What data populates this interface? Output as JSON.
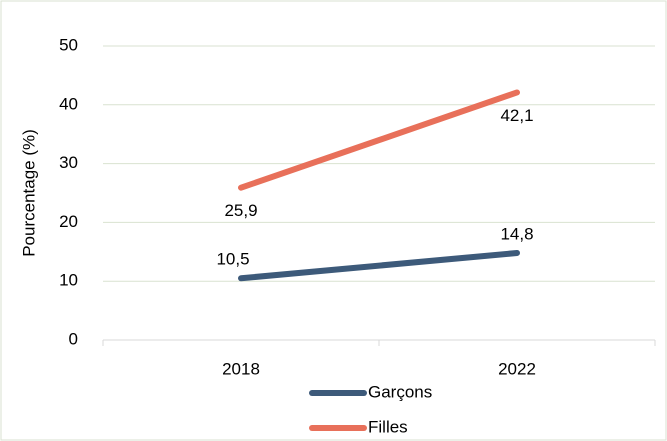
{
  "chart_data": {
    "type": "line",
    "y_label": "Pourcentage (%)",
    "categories": [
      "2018",
      "2022"
    ],
    "series": [
      {
        "name": "Garçons",
        "color": "#3d5a7a",
        "values": [
          10.5,
          14.8
        ],
        "value_labels": [
          "10,5",
          "14,8"
        ]
      },
      {
        "name": "Filles",
        "color": "#e8705a",
        "values": [
          25.9,
          42.1
        ],
        "value_labels": [
          "25,9",
          "42,1"
        ]
      }
    ],
    "ylim": [
      0,
      50
    ],
    "yticks": [
      0,
      10,
      20,
      30,
      40,
      50
    ],
    "grid": true,
    "legend": "bottom"
  }
}
